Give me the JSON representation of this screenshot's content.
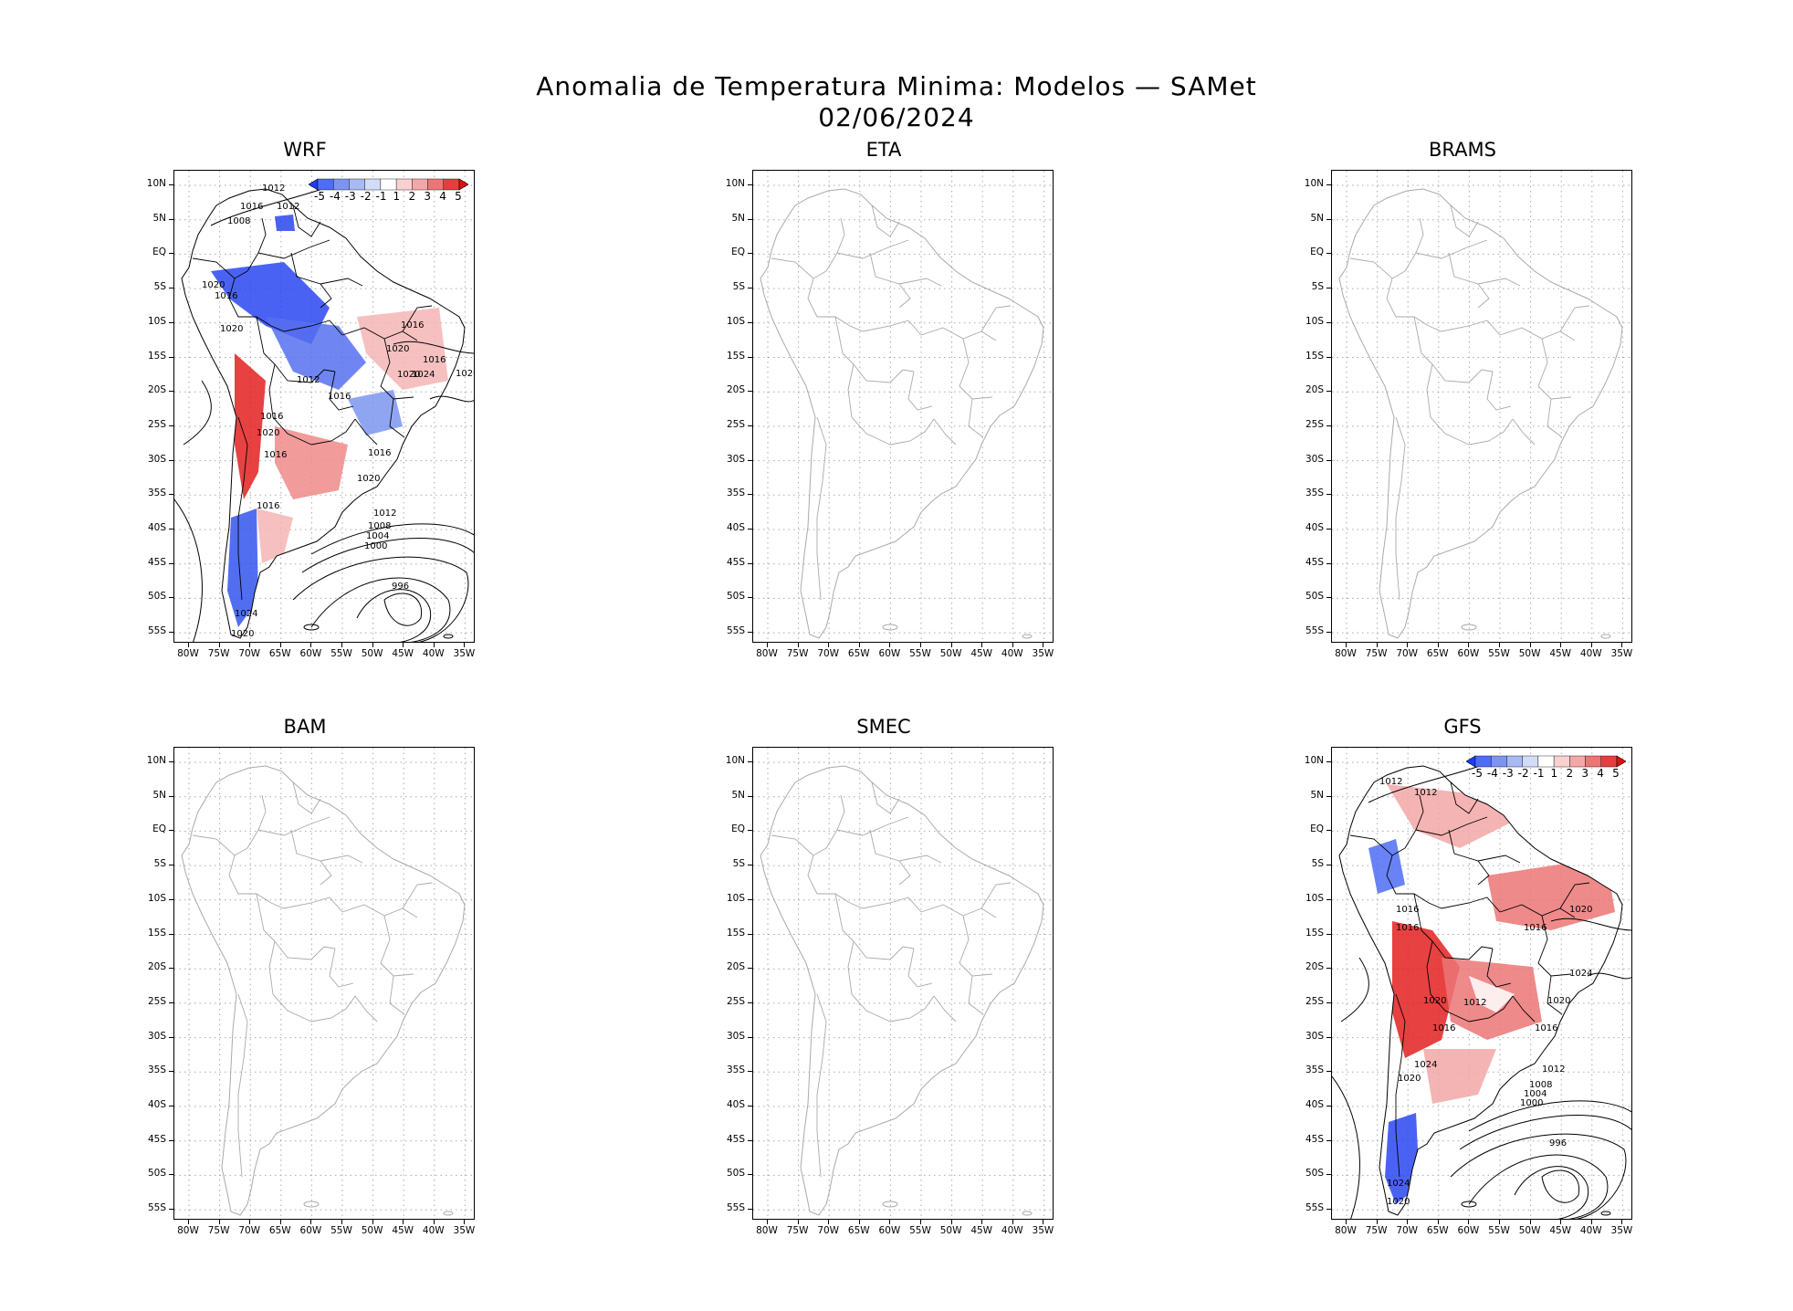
{
  "title": {
    "line1": "Anomalia de Temperatura Minima: Modelos — SAMet",
    "line2": "02/06/2024"
  },
  "panels": [
    {
      "name": "WRF",
      "has_data": true
    },
    {
      "name": "ETA",
      "has_data": false
    },
    {
      "name": "BRAMS",
      "has_data": false
    },
    {
      "name": "BAM",
      "has_data": false
    },
    {
      "name": "SMEC",
      "has_data": false
    },
    {
      "name": "GFS",
      "has_data": true
    }
  ],
  "y_axis": {
    "labels": [
      "10N",
      "5N",
      "EQ",
      "5S",
      "10S",
      "15S",
      "20S",
      "25S",
      "30S",
      "35S",
      "40S",
      "45S",
      "50S",
      "55S"
    ]
  },
  "x_axis": {
    "labels": [
      "80W",
      "75W",
      "70W",
      "65W",
      "60W",
      "55W",
      "50W",
      "45W",
      "40W",
      "35W"
    ]
  },
  "colorbar": {
    "labels": [
      "-5",
      "-4",
      "-3",
      "-2",
      "-1",
      "1",
      "2",
      "3",
      "4",
      "5"
    ],
    "colors": [
      "#1e3cff",
      "#4f6cf5",
      "#7d95f0",
      "#a9b9f2",
      "#d3dcf7",
      "#ffffff",
      "#f9d1d1",
      "#f3a7a7",
      "#ec7676",
      "#e43f3f",
      "#e01010"
    ]
  },
  "wrf_isobars": [
    "1012",
    "1012",
    "1016",
    "1008",
    "1020",
    "1016",
    "1020",
    "1016",
    "1020",
    "1016",
    "1020",
    "1024",
    "1020",
    "1012",
    "1016",
    "1016",
    "1020",
    "1016",
    "1016",
    "1020",
    "1016",
    "1012",
    "1008",
    "1004",
    "1000",
    "996",
    "1024",
    "1020",
    "1020",
    "1020"
  ],
  "gfs_isobars": [
    "1012",
    "1012",
    "1016",
    "1016",
    "1016",
    "1020",
    "1024",
    "1020",
    "1012",
    "1020",
    "1016",
    "1016",
    "1024",
    "1020",
    "1012",
    "1008",
    "1004",
    "1000",
    "996",
    "1024",
    "1020"
  ]
}
